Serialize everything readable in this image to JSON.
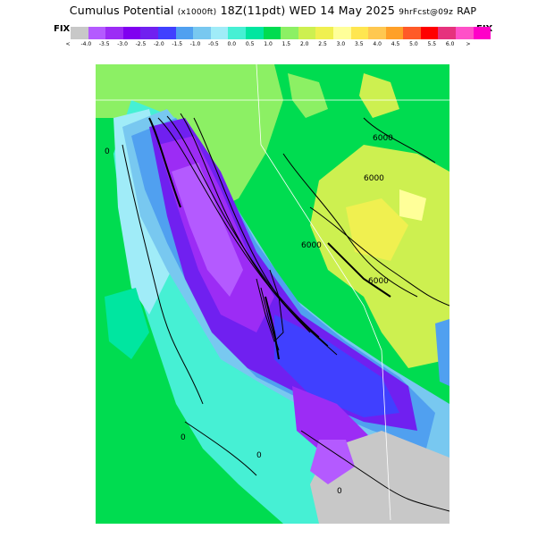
{
  "title": {
    "main": "Cumulus Potential",
    "units": "(x1000ft)",
    "time": "18Z(11pdt) WED 14 May 2025",
    "forecast": "9hrFcst@09z",
    "model": "RAP"
  },
  "legend": {
    "fix_left": "FIX",
    "fix_right": "FIX",
    "colors": [
      "#c8c8c8",
      "#b45aff",
      "#9c2cf5",
      "#8000f0",
      "#7020f0",
      "#4040ff",
      "#50a0f0",
      "#78c8f0",
      "#a0ecf8",
      "#46f0d4",
      "#00e6a0",
      "#00dc50",
      "#8cf064",
      "#cdf050",
      "#f0f050",
      "#ffff99",
      "#ffe650",
      "#ffc850",
      "#ffa028",
      "#ff5a28",
      "#ff0000",
      "#e6327d",
      "#ff50c8",
      "#ff00c8"
    ],
    "labels": [
      "<",
      "-4.0",
      "-3.5",
      "-3.0",
      "-2.5",
      "-2.0",
      "-1.5",
      "-1.0",
      "-0.5",
      "0.0",
      "0.5",
      "1.0",
      "1.5",
      "2.0",
      "2.5",
      "3.0",
      "3.5",
      "4.0",
      "4.5",
      "5.0",
      "5.5",
      "6.0",
      ">"
    ]
  },
  "map": {
    "contour_labels": [
      "6000",
      "6000",
      "6000",
      "6000",
      "0",
      "0",
      "0",
      "0"
    ]
  }
}
